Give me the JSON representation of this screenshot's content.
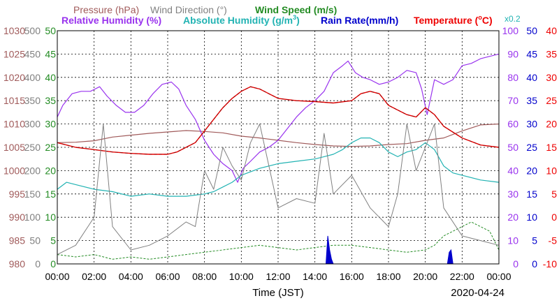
{
  "chart_data": {
    "type": "line",
    "header": {
      "pressure": "Pressure (hPa)",
      "wind_direction": "Wind Direction (°)",
      "wind_speed": "Wind Speed (m/s)",
      "relative_humidity": "Relative Humidity (%)",
      "absolute_humidity_prefix": "Absolute Humidity (g/m",
      "absolute_humidity_sup": "3",
      "absolute_humidity_suffix": ")",
      "rain_rate": "Rain Rate(mm/h)",
      "temperature_prefix": "Temperature (",
      "temperature_sup": "o",
      "temperature_suffix": "C)",
      "scale_note": "x0.2"
    },
    "xlabel": "Time (JST)",
    "date": "2020-04-24",
    "x_ticks": [
      "00:00",
      "02:00",
      "04:00",
      "06:00",
      "08:00",
      "10:00",
      "12:00",
      "14:00",
      "16:00",
      "18:00",
      "20:00",
      "22:00",
      "00:00"
    ],
    "x_range_hours": [
      0,
      24
    ],
    "grid": true,
    "axes": {
      "pressure": {
        "ticks": [
          980,
          985,
          990,
          995,
          1000,
          1005,
          1010,
          1015,
          1020,
          1025,
          1030
        ],
        "range": [
          980,
          1030
        ]
      },
      "wind_direction": {
        "ticks": [
          0,
          50,
          100,
          150,
          200,
          250,
          300,
          350,
          400,
          450,
          500
        ],
        "range": [
          0,
          500
        ]
      },
      "wind_speed": {
        "ticks": [
          0,
          5,
          10,
          15,
          20,
          25,
          30,
          35,
          40,
          45,
          50
        ],
        "range": [
          0,
          50
        ]
      },
      "humidity": {
        "ticks": [
          0,
          10,
          20,
          30,
          40,
          50,
          60,
          70,
          80,
          90,
          100
        ],
        "range": [
          0,
          100
        ]
      },
      "rain_rate": {
        "ticks": [
          0,
          5,
          10,
          15,
          20,
          25,
          30,
          35,
          40,
          45,
          50
        ],
        "range": [
          0,
          50
        ]
      },
      "temperature": {
        "ticks": [
          -10,
          -5,
          0,
          5,
          10,
          15,
          20,
          25,
          30,
          35,
          40
        ],
        "range": [
          -10,
          40
        ]
      }
    },
    "colors": {
      "pressure": "#a05a5a",
      "wind_direction": "#808080",
      "wind_speed": "#228b22",
      "relative_humidity": "#9933ee",
      "absolute_humidity": "#22b3b3",
      "rain_rate": "#0000cc",
      "temperature": "#ee0000",
      "temperature_dark": "#8b0000"
    },
    "series": [
      {
        "name": "Pressure (hPa)",
        "axis": "pressure",
        "x": [
          0,
          1,
          2,
          3,
          4,
          5,
          6,
          7,
          8,
          9,
          10,
          11,
          12,
          13,
          14,
          15,
          16,
          17,
          18,
          19,
          20,
          21,
          22,
          23,
          24
        ],
        "values": [
          1006,
          1006.1,
          1006.4,
          1007.2,
          1007.6,
          1008,
          1008.3,
          1008.6,
          1008.4,
          1008.1,
          1007.4,
          1007,
          1006.5,
          1006,
          1005.6,
          1005.3,
          1005.2,
          1005.3,
          1005.6,
          1005.8,
          1006.5,
          1007,
          1008.5,
          1009.8,
          1010
        ]
      },
      {
        "name": "Relative Humidity (%)",
        "axis": "humidity",
        "x": [
          0,
          0.3,
          0.8,
          1.3,
          1.8,
          2.3,
          2.7,
          3.2,
          3.7,
          4.2,
          4.7,
          5.2,
          5.7,
          6.2,
          6.6,
          7,
          7.5,
          8,
          8.5,
          9,
          9.5,
          9.8,
          10.1,
          10.5,
          11,
          11.5,
          12,
          12.5,
          13,
          13.5,
          14,
          14.5,
          15,
          15.5,
          15.8,
          16.2,
          16.6,
          17,
          17.5,
          18,
          18.5,
          19,
          19.5,
          19.8,
          20.1,
          20.5,
          21,
          21.5,
          22,
          22.5,
          23,
          23.5,
          24
        ],
        "values": [
          63,
          68,
          73,
          74,
          74,
          76,
          72,
          68,
          65,
          65,
          68,
          73,
          77,
          78,
          75,
          68,
          62,
          53,
          47,
          43,
          40,
          35,
          41,
          44,
          48,
          50,
          53,
          58,
          63,
          67,
          70,
          74,
          82,
          85,
          87,
          82,
          80,
          79,
          77,
          78,
          80,
          83,
          82,
          75,
          64,
          79,
          77,
          79,
          85,
          86,
          88,
          89,
          90
        ]
      },
      {
        "name": "Absolute Humidity (g/m3)",
        "axis": "humidity",
        "scale": "x0.2",
        "x": [
          0,
          0.5,
          1,
          2,
          3,
          4,
          5,
          6,
          7,
          8,
          8.5,
          9,
          9.5,
          10,
          11,
          12,
          13,
          14,
          14.5,
          15,
          15.5,
          16,
          16.5,
          17,
          17.5,
          18,
          18.5,
          19,
          19.5,
          20,
          20.5,
          21,
          21.5,
          22,
          23,
          24
        ],
        "values": [
          32,
          35,
          34,
          32,
          31,
          29,
          30,
          29,
          29,
          30,
          31,
          33,
          35,
          38,
          41,
          43,
          44,
          45,
          46,
          47,
          49,
          52,
          54,
          54,
          52,
          48,
          46,
          48,
          49,
          52,
          49,
          42,
          39,
          38,
          36,
          35
        ]
      },
      {
        "name": "Temperature (oC)",
        "axis": "temperature",
        "x": [
          0,
          0.5,
          1,
          2,
          3,
          4,
          5,
          6,
          6.5,
          7,
          7.5,
          8,
          8.5,
          9,
          9.5,
          10,
          10.5,
          11,
          11.5,
          12,
          13,
          14,
          15,
          16,
          16.5,
          17,
          17.5,
          18,
          18.5,
          19,
          19.5,
          20,
          20.5,
          21,
          22,
          23,
          24
        ],
        "values": [
          16,
          15.5,
          15,
          14.5,
          14,
          13.7,
          13.5,
          13.5,
          14,
          15,
          16,
          18.5,
          21,
          23.5,
          25.5,
          27,
          28,
          27.5,
          26.5,
          25.5,
          25,
          24.8,
          24.5,
          25,
          26.5,
          27,
          26.5,
          24,
          23,
          22,
          21.5,
          23.5,
          22,
          19.5,
          17,
          15.5,
          15
        ]
      },
      {
        "name": "Wind Speed (m/s)",
        "axis": "wind_speed",
        "x": [
          0,
          1,
          2,
          3,
          4,
          5,
          6,
          7,
          8,
          9,
          10,
          11,
          12,
          13,
          14,
          15,
          16,
          17,
          18,
          19,
          20,
          20.5,
          21,
          21.5,
          22,
          22.5,
          23,
          23.5,
          24
        ],
        "values": [
          2,
          1.5,
          2,
          1,
          1.5,
          1,
          1.5,
          2,
          2.5,
          3,
          3.5,
          4,
          3.5,
          3,
          3.5,
          4,
          4,
          3.5,
          3,
          2.5,
          3,
          4,
          6,
          7,
          8,
          9,
          8,
          7,
          3
        ]
      },
      {
        "name": "Wind Direction (°)",
        "axis": "wind_direction",
        "x": [
          0,
          1,
          2,
          2.5,
          3,
          4,
          5,
          6,
          7,
          7.5,
          8,
          8.5,
          9,
          9.5,
          10,
          10.5,
          11,
          12,
          13,
          14,
          14.5,
          15,
          16,
          17,
          18,
          18.5,
          19,
          19.5,
          20,
          20.5,
          21,
          22,
          23,
          24
        ],
        "values": [
          20,
          40,
          100,
          300,
          80,
          30,
          40,
          60,
          90,
          80,
          200,
          160,
          250,
          210,
          180,
          260,
          300,
          120,
          140,
          130,
          280,
          150,
          190,
          120,
          80,
          150,
          300,
          200,
          250,
          300,
          120,
          60,
          50,
          40
        ]
      },
      {
        "name": "Rain Rate(mm/h)",
        "axis": "rain_rate",
        "x": [
          0,
          14.6,
          14.7,
          14.8,
          14.9,
          15,
          21.2,
          21.3,
          21.4,
          21.5,
          24
        ],
        "values": [
          0,
          0,
          6,
          3,
          1,
          0,
          0,
          2.5,
          3,
          0,
          0
        ]
      }
    ]
  }
}
